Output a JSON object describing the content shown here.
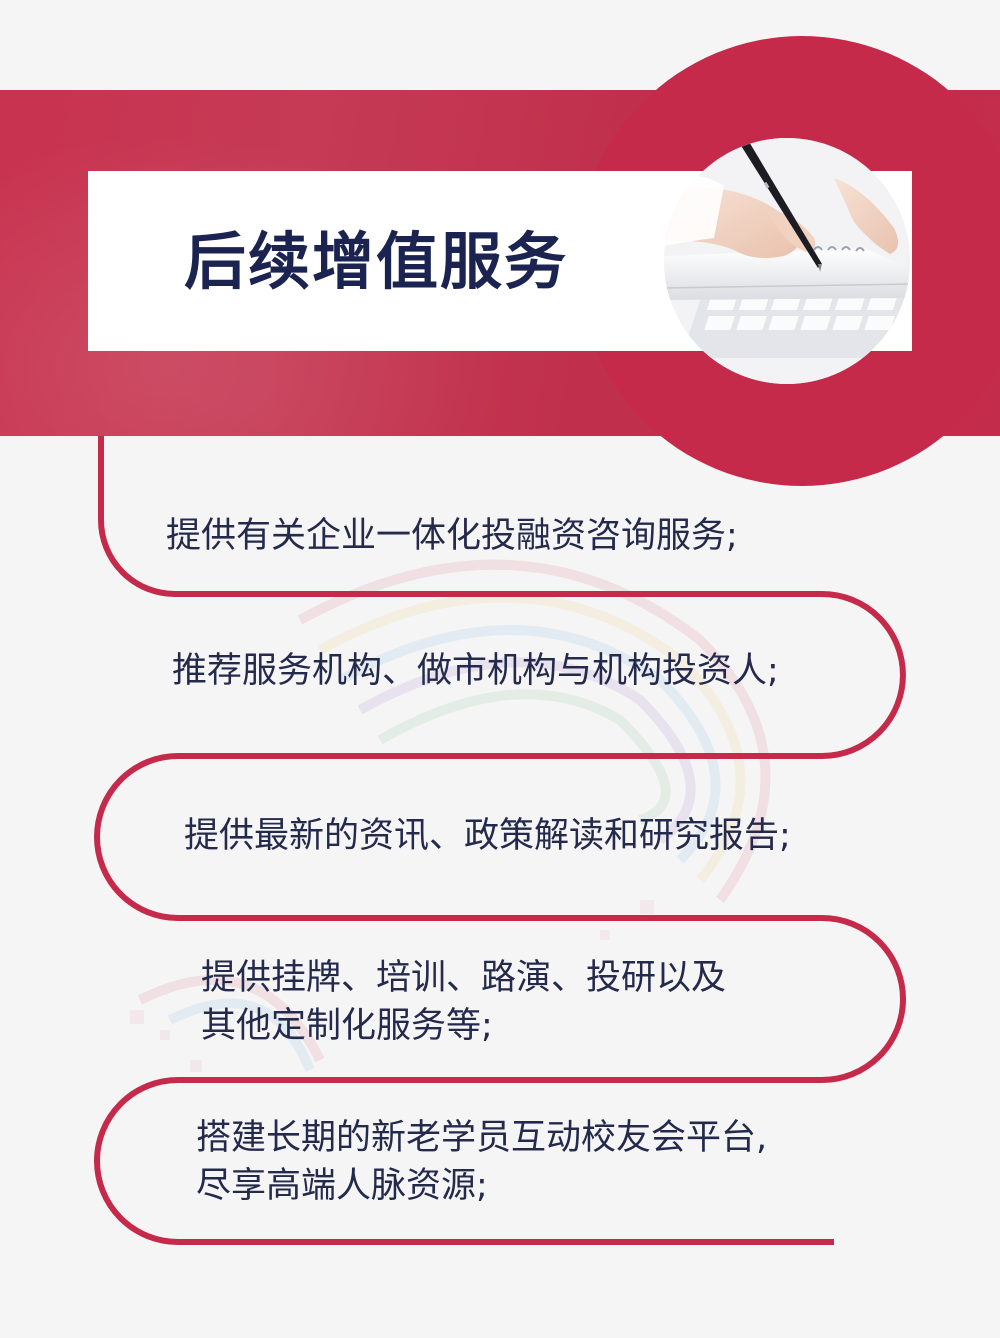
{
  "title": "后续增值服务",
  "colors": {
    "accent": "#c52a4a",
    "title_text": "#1b2350",
    "body_text": "#242a4c",
    "background": "#f6f5f6"
  },
  "illustration": "hand-writing-with-pen-photo",
  "services": [
    "提供有关企业一体化投融资咨询服务;",
    "推荐服务机构、做市机构与机构投资人;",
    "提供最新的资讯、政策解读和研究报告;",
    "提供挂牌、培训、路演、投研以及\n其他定制化服务等;",
    "搭建长期的新老学员互动校友会平台,\n尽享高端人脉资源;"
  ]
}
